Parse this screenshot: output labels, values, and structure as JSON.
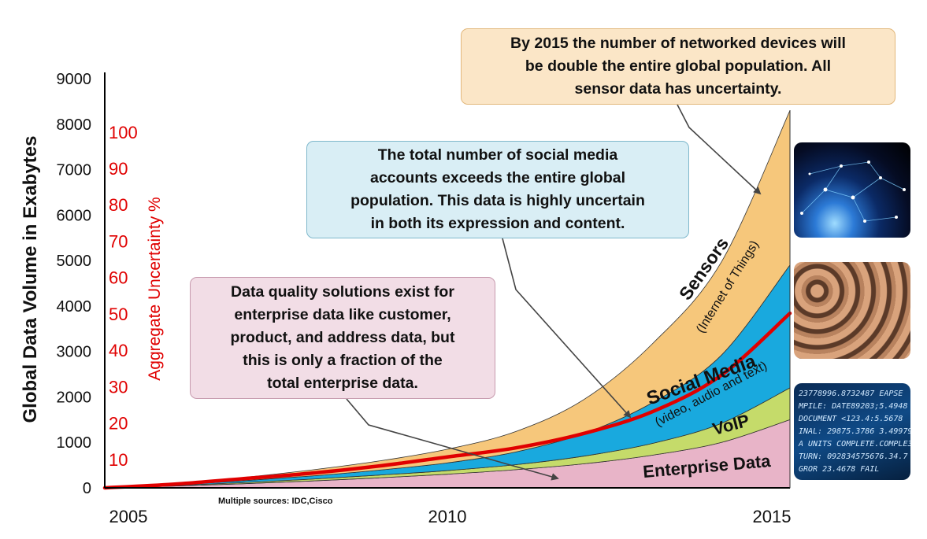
{
  "chart_data": {
    "type": "area",
    "stacked": true,
    "x": [
      2005,
      2006,
      2007,
      2008,
      2009,
      2010,
      2011,
      2012,
      2013,
      2014,
      2015
    ],
    "xlim": [
      2005,
      2015
    ],
    "ylim": [
      0,
      9000
    ],
    "ylabel": "Global Data Volume in Exabytes",
    "yticks": [
      0,
      1000,
      2000,
      3000,
      4000,
      5000,
      6000,
      7000,
      8000,
      9000
    ],
    "xticks": [
      "2005",
      "2010",
      "2015"
    ],
    "series": [
      {
        "name": "Enterprise Data",
        "color": "#e8b4c8",
        "values": [
          0,
          40,
          90,
          150,
          220,
          300,
          400,
          530,
          720,
          1000,
          1500
        ]
      },
      {
        "name": "VoIP",
        "color": "#c5db6a",
        "values": [
          0,
          10,
          25,
          40,
          60,
          80,
          110,
          170,
          260,
          420,
          700
        ]
      },
      {
        "name": "Social Media",
        "sub": "(video, audio and text)",
        "color": "#19a9de",
        "values": [
          0,
          15,
          40,
          70,
          110,
          170,
          280,
          500,
          900,
          1500,
          2700
        ]
      },
      {
        "name": "Sensors",
        "sub": "(Internet of Things)",
        "color": "#f6c77b",
        "values": [
          0,
          30,
          70,
          130,
          200,
          300,
          450,
          750,
          1300,
          2050,
          3400
        ]
      }
    ],
    "secondary_axis": {
      "label": "Aggregate  Uncertainty %",
      "ticks": [
        10,
        20,
        30,
        40,
        50,
        60,
        70,
        80,
        90,
        100
      ],
      "color": "#e00000"
    },
    "uncertainty_line": {
      "color": "#e00000",
      "values_percent": [
        0,
        1,
        2.5,
        4,
        6,
        8.5,
        11,
        15,
        21,
        31,
        48
      ]
    },
    "annotations": [
      "By 2015 the number of networked devices will be double the entire global population. All sensor data has uncertainty.",
      "The total number of social media accounts exceeds the entire global population. This data is highly uncertain in both its expression and content.",
      "Data quality solutions exist for enterprise data like customer, product, and address data, but this is only a fraction of the total enterprise data."
    ],
    "source_note": "Multiple sources:  IDC,Cisco"
  },
  "callouts": {
    "devices": [
      "By 2015 the number of networked devices will",
      "be double the entire global population. All",
      "sensor data has uncertainty."
    ],
    "social": [
      "The total number of social media",
      "accounts exceeds the entire global",
      "population. This data is highly uncertain",
      "in both its expression and content."
    ],
    "enterprise": [
      "Data quality solutions exist for",
      "enterprise data like customer,",
      "product, and address data, but",
      "this is only a fraction of the",
      "total enterprise data."
    ]
  },
  "photos": {
    "code_lines": [
      "23778996.8732487 EAPSE",
      "MPILE: DATE89203;5.4948",
      "DOCUMENT  <123.4:5.5678",
      "INAL: 29875.3786 3.49979",
      "A UNITS COMPLETE.COMPLE3",
      "TURN: 092834575676.34.7",
      "GROR 23.4678 FAIL"
    ]
  }
}
